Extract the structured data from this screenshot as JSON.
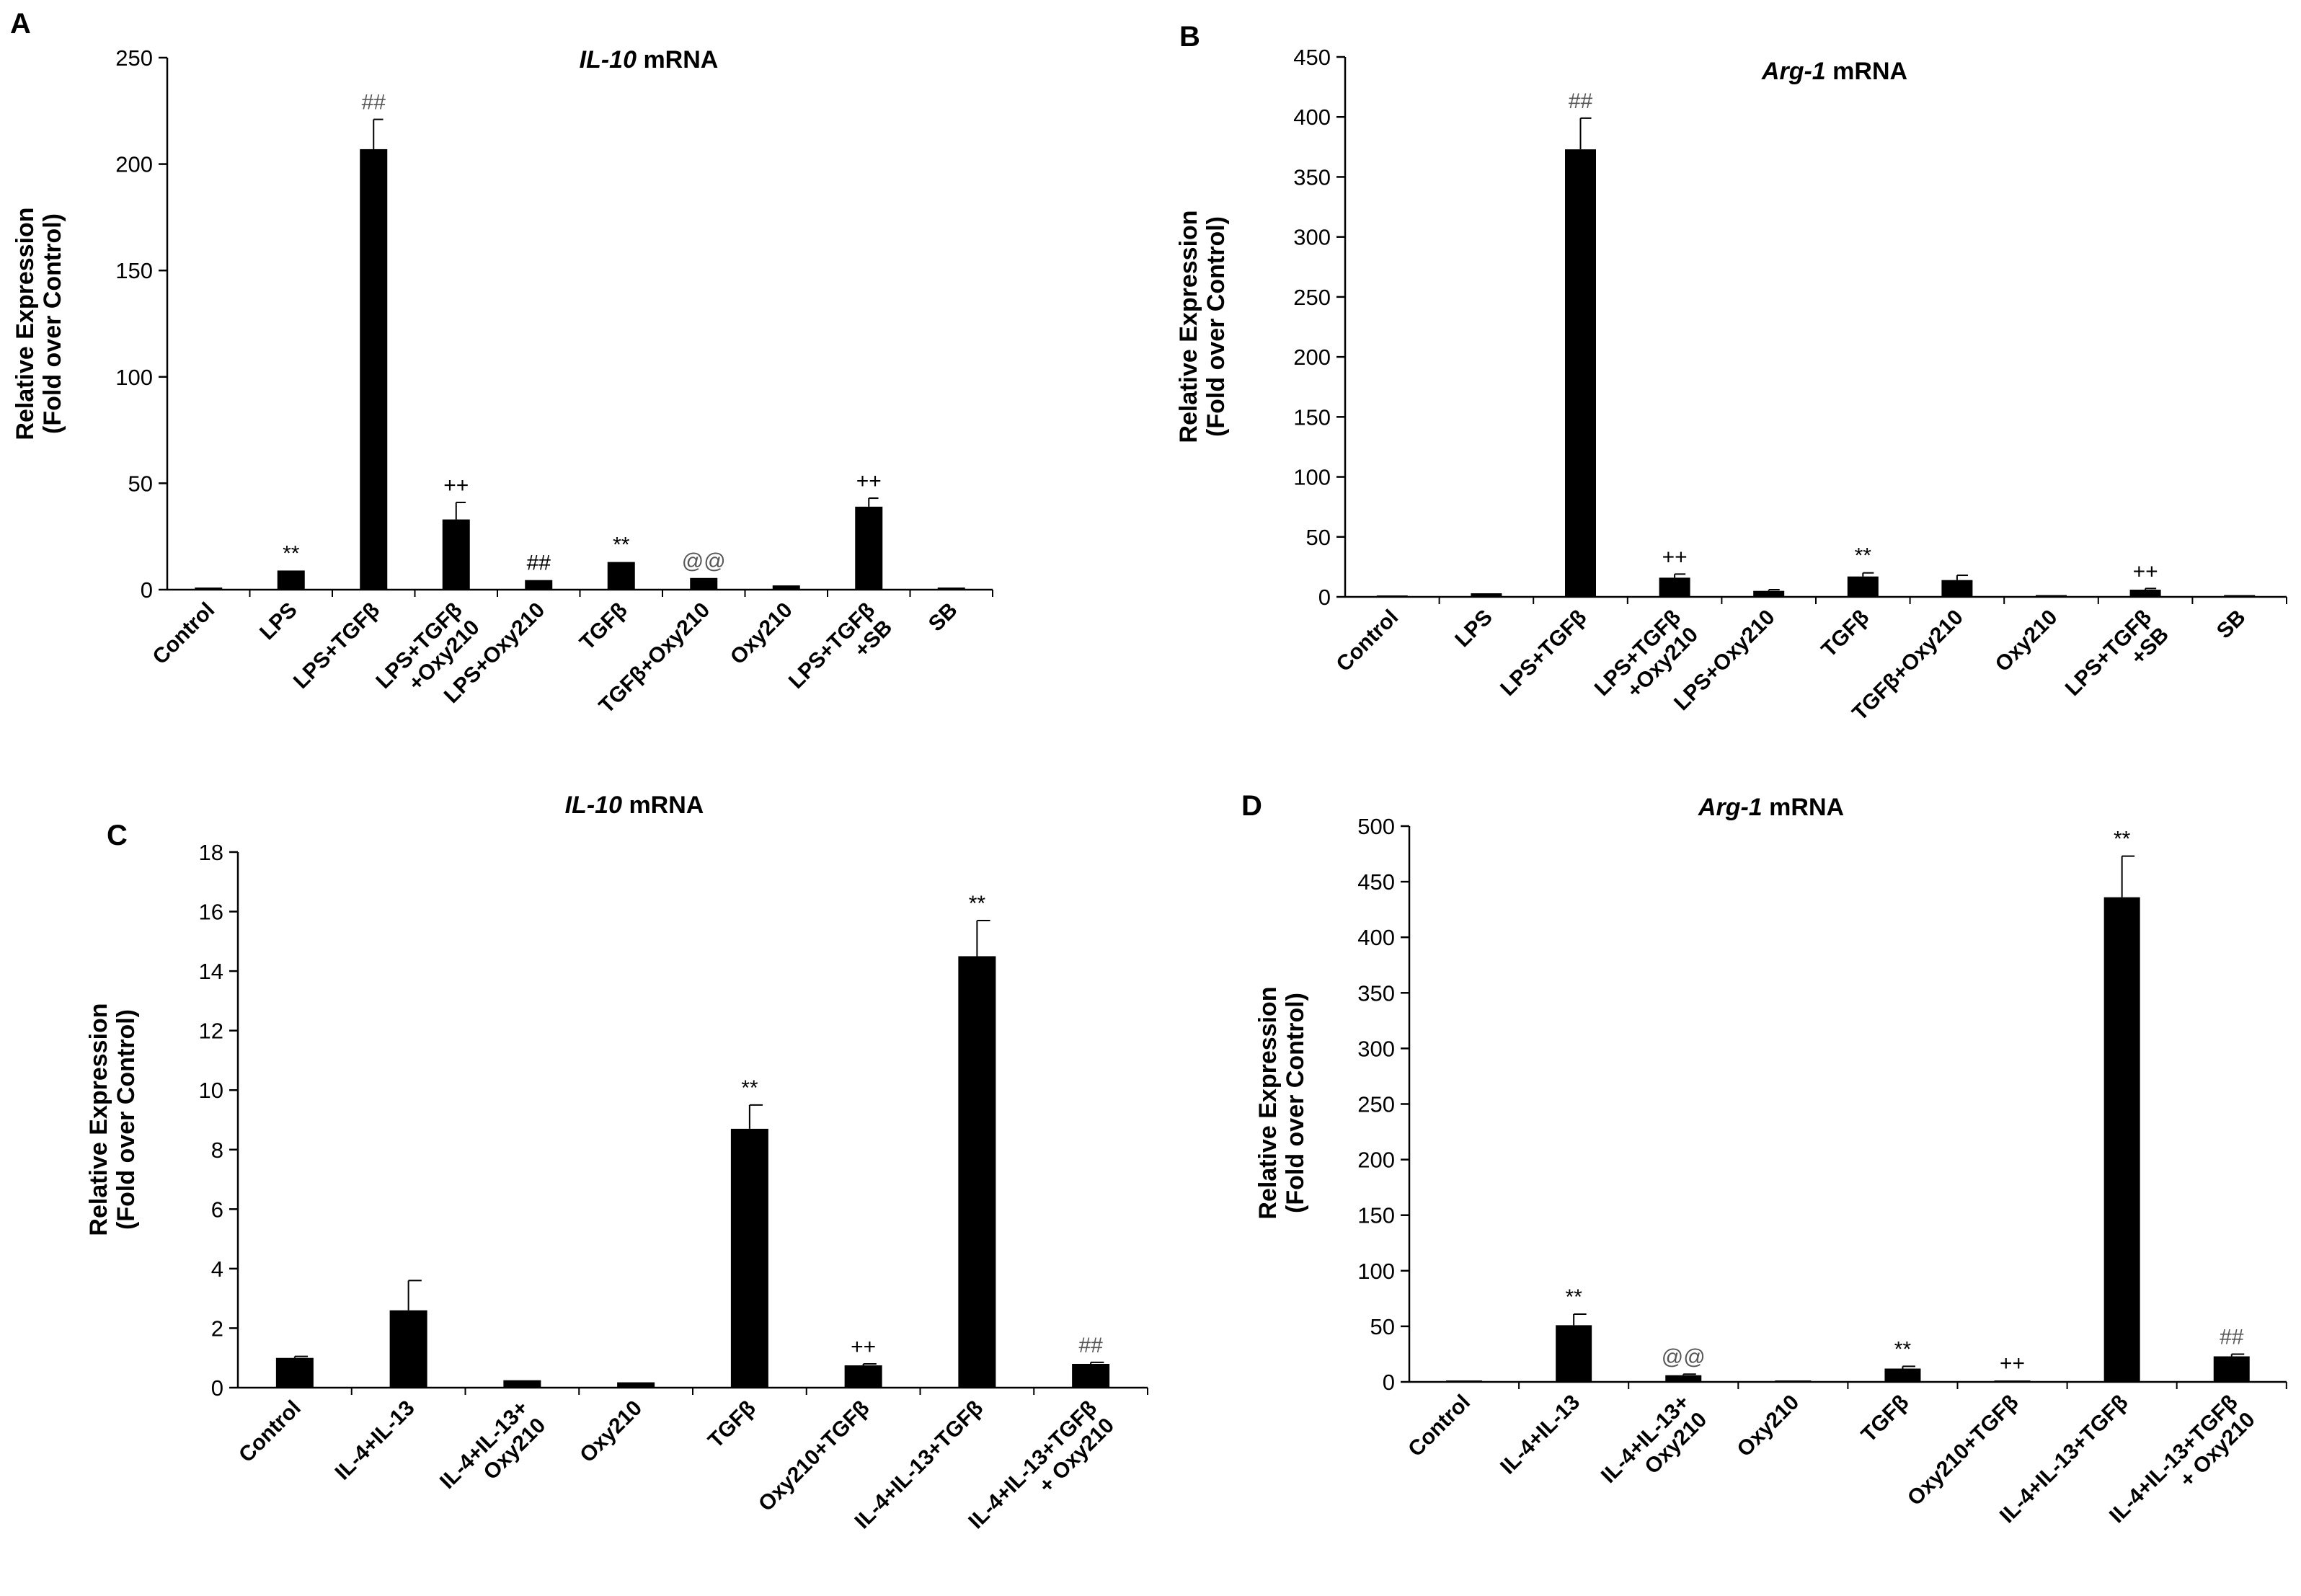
{
  "chart_data": [
    {
      "panel": "A",
      "type": "bar",
      "title_italic": "IL-10",
      "title_rest": " mRNA",
      "ylabel": [
        "Relative Expression",
        "(Fold over Control)"
      ],
      "ylim": [
        0,
        250
      ],
      "yticks": [
        0,
        50,
        100,
        150,
        200,
        250
      ],
      "categories": [
        {
          "lines": [
            "Control"
          ]
        },
        {
          "lines": [
            "LPS"
          ]
        },
        {
          "lines": [
            "LPS+TGFβ"
          ]
        },
        {
          "lines": [
            "LPS+TGFβ",
            "+Oxy210"
          ]
        },
        {
          "lines": [
            "LPS+Oxy210"
          ]
        },
        {
          "lines": [
            "TGFβ"
          ]
        },
        {
          "lines": [
            "TGFβ+Oxy210"
          ]
        },
        {
          "lines": [
            "Oxy210"
          ]
        },
        {
          "lines": [
            "LPS+TGFβ",
            "+SB"
          ]
        },
        {
          "lines": [
            "SB"
          ]
        }
      ],
      "values": [
        1,
        9,
        207,
        33,
        4.5,
        13,
        5.5,
        2,
        39,
        1
      ],
      "errors": [
        0,
        0,
        14,
        8,
        0,
        0,
        0,
        0,
        4,
        0
      ],
      "annotations": [
        "",
        "**",
        "##",
        "++",
        "##",
        "**",
        "@@",
        "",
        "++",
        ""
      ],
      "annotation_gray": [
        false,
        false,
        true,
        false,
        false,
        false,
        true,
        false,
        false,
        false
      ]
    },
    {
      "panel": "B",
      "type": "bar",
      "title_italic": "Arg-1",
      "title_rest": " mRNA",
      "ylabel": [
        "Relative Expression",
        "(Fold over Control)"
      ],
      "ylim": [
        0,
        450
      ],
      "yticks": [
        0,
        50,
        100,
        150,
        200,
        250,
        300,
        350,
        400,
        450
      ],
      "categories": [
        {
          "lines": [
            "Control"
          ]
        },
        {
          "lines": [
            "LPS"
          ]
        },
        {
          "lines": [
            "LPS+TGFβ"
          ]
        },
        {
          "lines": [
            "LPS+TGFβ",
            "+Oxy210"
          ]
        },
        {
          "lines": [
            "LPS+Oxy210"
          ]
        },
        {
          "lines": [
            "TGFβ"
          ]
        },
        {
          "lines": [
            "TGFβ+Oxy210"
          ]
        },
        {
          "lines": [
            "Oxy210"
          ]
        },
        {
          "lines": [
            "LPS+TGFβ",
            "+SB"
          ]
        },
        {
          "lines": [
            "SB"
          ]
        }
      ],
      "values": [
        1,
        3,
        373,
        16,
        5,
        17,
        14,
        1.5,
        6,
        1.5
      ],
      "errors": [
        0,
        0,
        26,
        3,
        1,
        3,
        4,
        0,
        1,
        0
      ],
      "annotations": [
        "",
        "",
        "##",
        "++",
        "",
        "**",
        "",
        "",
        "++",
        ""
      ],
      "annotation_gray": [
        false,
        false,
        true,
        false,
        false,
        false,
        false,
        false,
        false,
        false
      ]
    },
    {
      "panel": "C",
      "type": "bar",
      "title_italic": "IL-10",
      "title_rest": " mRNA",
      "ylabel": [
        "Relative Expression",
        "(Fold over Control)"
      ],
      "ylim": [
        0,
        18
      ],
      "yticks": [
        0,
        2,
        4,
        6,
        8,
        10,
        12,
        14,
        16,
        18
      ],
      "categories": [
        {
          "lines": [
            "Control"
          ]
        },
        {
          "lines": [
            "IL-4+IL-13"
          ]
        },
        {
          "lines": [
            "IL-4+IL-13+",
            "Oxy210"
          ]
        },
        {
          "lines": [
            "Oxy210"
          ]
        },
        {
          "lines": [
            "TGFβ"
          ]
        },
        {
          "lines": [
            "Oxy210+TGFβ"
          ]
        },
        {
          "lines": [
            "IL-4+IL-13+TGFβ"
          ]
        },
        {
          "lines": [
            "IL-4+IL-13+TGFβ",
            "+ Oxy210"
          ]
        }
      ],
      "values": [
        1,
        2.6,
        0.25,
        0.18,
        8.7,
        0.75,
        14.5,
        0.8
      ],
      "errors": [
        0.05,
        1.0,
        0,
        0,
        0.8,
        0.05,
        1.2,
        0.05
      ],
      "annotations": [
        "",
        "",
        "",
        "",
        "**",
        "++",
        "**",
        "##"
      ],
      "annotation_gray": [
        false,
        false,
        false,
        false,
        false,
        false,
        false,
        true
      ]
    },
    {
      "panel": "D",
      "type": "bar",
      "title_italic": "Arg-1",
      "title_rest": " mRNA",
      "ylabel": [
        "Relative Expression",
        "(Fold over Control)"
      ],
      "ylim": [
        0,
        500
      ],
      "yticks": [
        0,
        50,
        100,
        150,
        200,
        250,
        300,
        350,
        400,
        450,
        500
      ],
      "categories": [
        {
          "lines": [
            "Control"
          ]
        },
        {
          "lines": [
            "IL-4+IL-13"
          ]
        },
        {
          "lines": [
            "IL-4+IL-13+",
            "Oxy210"
          ]
        },
        {
          "lines": [
            "Oxy210"
          ]
        },
        {
          "lines": [
            "TGFβ"
          ]
        },
        {
          "lines": [
            "Oxy210+TGFβ"
          ]
        },
        {
          "lines": [
            "IL-4+IL-13+TGFβ"
          ]
        },
        {
          "lines": [
            "IL-4+IL-13+TGFβ",
            "+ Oxy210"
          ]
        }
      ],
      "values": [
        1,
        51,
        6,
        1,
        12,
        1,
        436,
        23
      ],
      "errors": [
        0,
        10,
        1,
        0,
        2,
        0,
        37,
        2
      ],
      "annotations": [
        "",
        "**",
        "@@",
        "",
        "**",
        "++",
        "**",
        "##"
      ],
      "annotation_gray": [
        false,
        false,
        true,
        false,
        false,
        false,
        false,
        true
      ]
    }
  ]
}
